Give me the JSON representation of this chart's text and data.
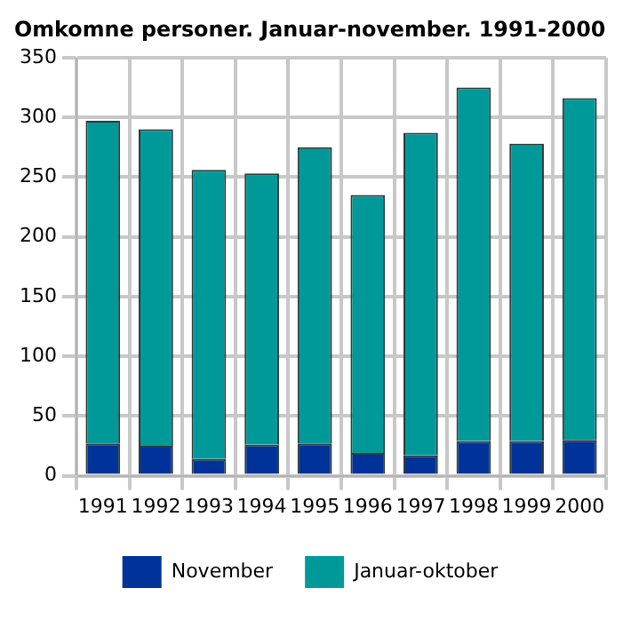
{
  "chart_data": {
    "type": "bar",
    "title": "Omkomne personer. Januar-november. 1991-2000",
    "categories": [
      "1991",
      "1992",
      "1993",
      "1994",
      "1995",
      "1996",
      "1997",
      "1998",
      "1999",
      "2000"
    ],
    "stacked": true,
    "series": [
      {
        "name": "November",
        "color": "#003399",
        "values": [
          27,
          25,
          14,
          26,
          27,
          19,
          17,
          29,
          29,
          30
        ]
      },
      {
        "name": "Januar-oktober",
        "color": "#009999",
        "values": [
          270,
          265,
          242,
          227,
          248,
          216,
          270,
          296,
          249,
          286
        ]
      }
    ],
    "ylim": [
      0,
      350
    ],
    "yticks": [
      0,
      50,
      100,
      150,
      200,
      250,
      300,
      350
    ],
    "grid": true,
    "legend": "bottom"
  }
}
